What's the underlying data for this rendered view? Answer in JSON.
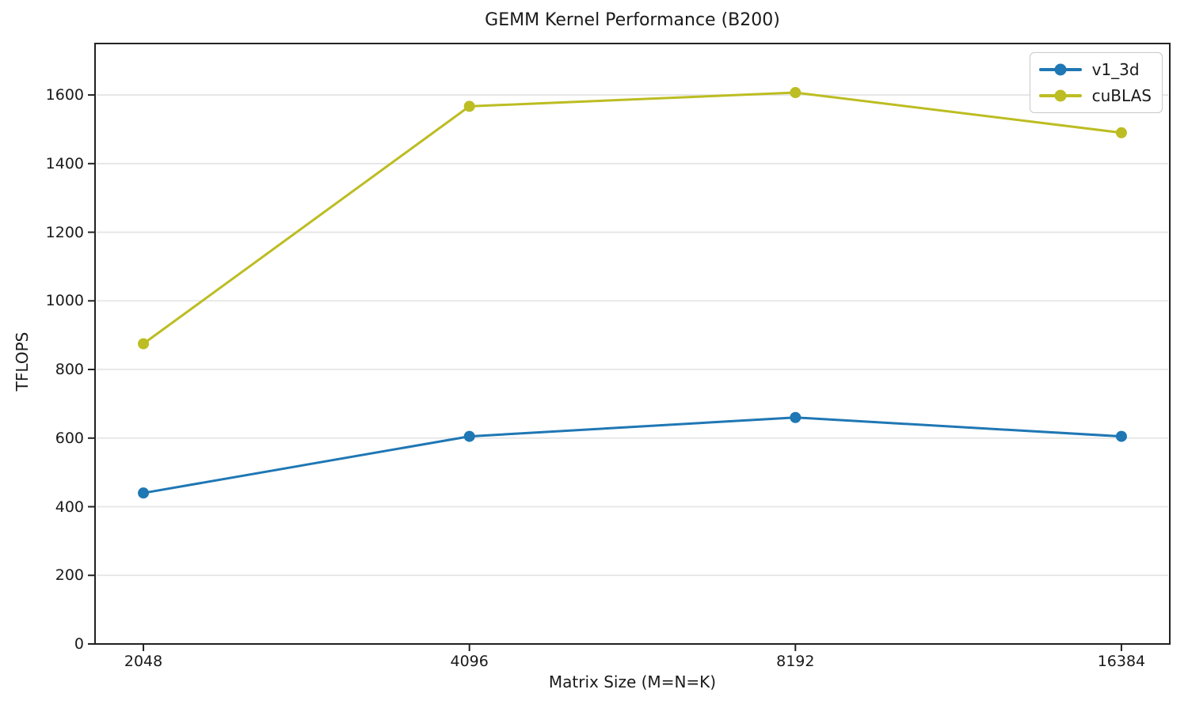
{
  "chart_data": {
    "type": "line",
    "title": "GEMM Kernel Performance (B200)",
    "xlabel": "Matrix Size (M=N=K)",
    "ylabel": "TFLOPS",
    "x": [
      2048,
      4096,
      8192,
      16384
    ],
    "x_tick_labels": [
      "2048",
      "4096",
      "8192",
      "16384"
    ],
    "x_scale": "log2",
    "yticks": [
      0,
      200,
      400,
      600,
      800,
      1000,
      1200,
      1400,
      1600
    ],
    "ylim": [
      0,
      1750
    ],
    "grid": "horizontal-only",
    "legend": {
      "position": "upper-right",
      "entries": [
        "v1_3d",
        "cuBLAS"
      ]
    },
    "series": [
      {
        "name": "v1_3d",
        "color": "#1f77b4",
        "marker": "circle",
        "values": [
          440,
          605,
          660,
          605
        ]
      },
      {
        "name": "cuBLAS",
        "color": "#bcbd22",
        "marker": "circle",
        "values": [
          875,
          1567,
          1607,
          1490
        ]
      }
    ],
    "colors": {
      "background": "#ffffff",
      "spine": "#222222",
      "grid": "#e5e5e5",
      "text": "#1a1a1a"
    }
  }
}
